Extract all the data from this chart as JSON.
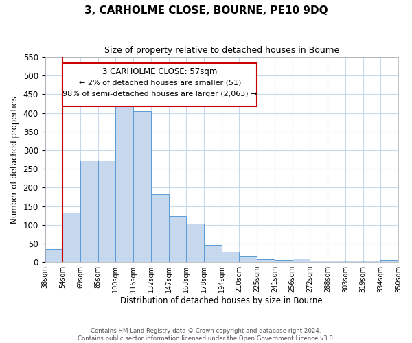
{
  "title": "3, CARHOLME CLOSE, BOURNE, PE10 9DQ",
  "subtitle": "Size of property relative to detached houses in Bourne",
  "xlabel": "Distribution of detached houses by size in Bourne",
  "ylabel": "Number of detached properties",
  "bar_color": "#c5d8ed",
  "bar_edge_color": "#5b9bd5",
  "bin_labels": [
    "38sqm",
    "54sqm",
    "69sqm",
    "85sqm",
    "100sqm",
    "116sqm",
    "132sqm",
    "147sqm",
    "163sqm",
    "178sqm",
    "194sqm",
    "210sqm",
    "225sqm",
    "241sqm",
    "256sqm",
    "272sqm",
    "288sqm",
    "303sqm",
    "319sqm",
    "334sqm",
    "350sqm"
  ],
  "bar_values": [
    35,
    133,
    272,
    272,
    435,
    405,
    183,
    124,
    103,
    46,
    28,
    17,
    7,
    5,
    9,
    3,
    4,
    4,
    3,
    5
  ],
  "vline_x": 1,
  "vline_color": "#cc0000",
  "annotation_title": "3 CARHOLME CLOSE: 57sqm",
  "annotation_line1": "← 2% of detached houses are smaller (51)",
  "annotation_line2": "98% of semi-detached houses are larger (2,063) →",
  "ylim": [
    0,
    550
  ],
  "yticks": [
    0,
    50,
    100,
    150,
    200,
    250,
    300,
    350,
    400,
    450,
    500,
    550
  ],
  "footer1": "Contains HM Land Registry data © Crown copyright and database right 2024.",
  "footer2": "Contains public sector information licensed under the Open Government Licence v3.0.",
  "background_color": "#ffffff",
  "grid_color": "#c8d8ea"
}
